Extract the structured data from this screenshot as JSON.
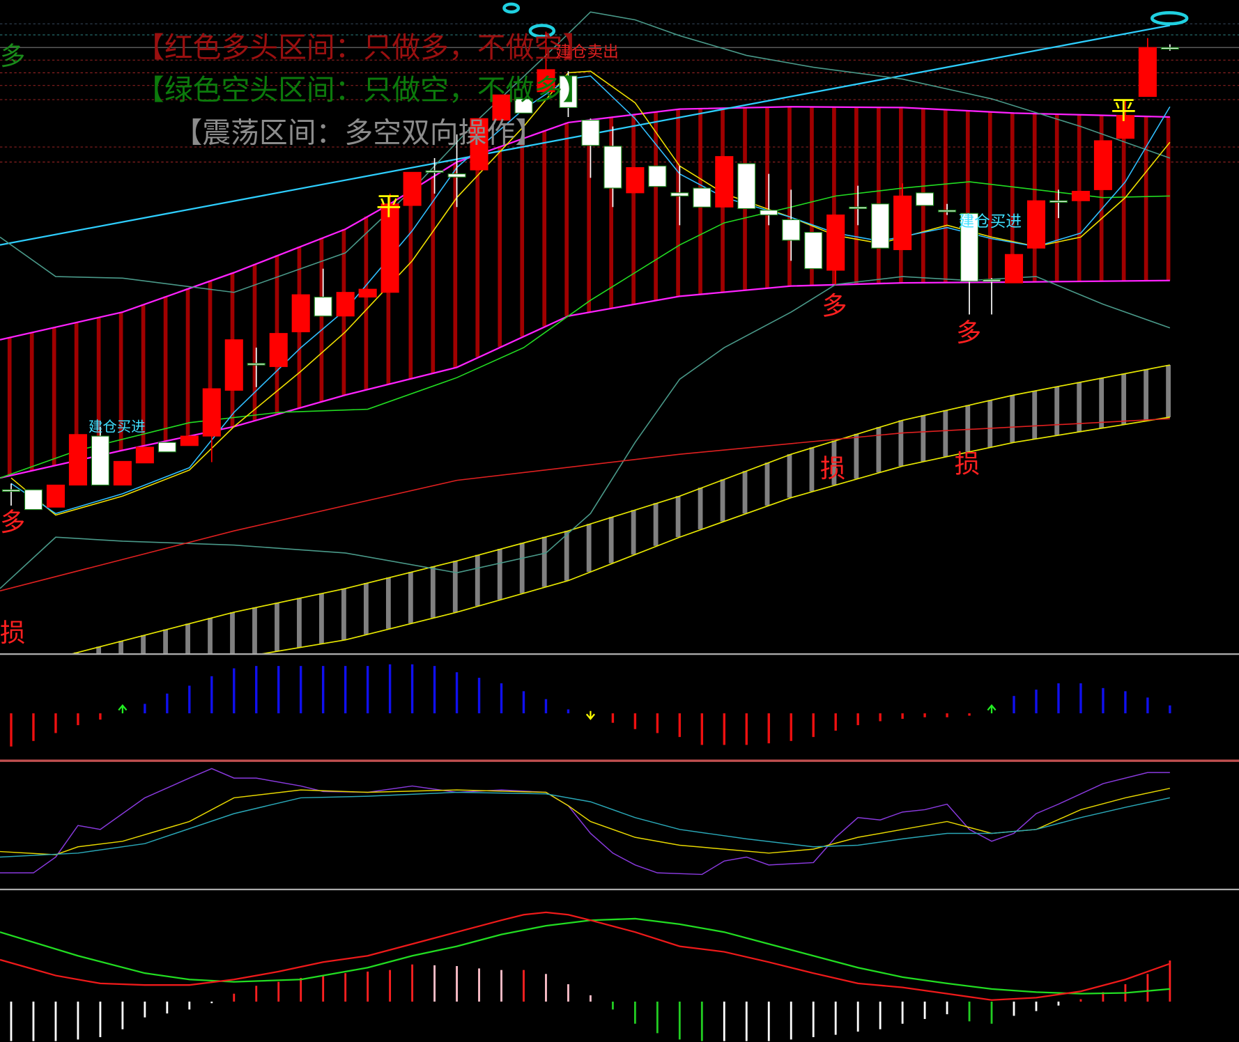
{
  "chart_data": [
    {
      "type": "candlestick",
      "xlim": [
        -0.5,
        55.1
      ],
      "ylim": [
        0,
        828
      ],
      "up_color": "#ff0000",
      "down_color": "#ffffff",
      "open": [
        208,
        208,
        186,
        214,
        276,
        214,
        242,
        268,
        264,
        276,
        334,
        368,
        364,
        408,
        452,
        428,
        452,
        458,
        568,
        612,
        608,
        613,
        676,
        703,
        712,
        732,
        676,
        643,
        584,
        618,
        584,
        590,
        566,
        621,
        562,
        550,
        534,
        486,
        566,
        570,
        512,
        584,
        562,
        558,
        474,
        470,
        514,
        574,
        574,
        588,
        653,
        706,
        768
      ],
      "high": [
        216,
        208,
        214,
        278,
        288,
        244,
        262,
        268,
        276,
        336,
        398,
        388,
        406,
        455,
        488,
        458,
        462,
        583,
        610,
        628,
        658,
        678,
        708,
        703,
        788,
        738,
        678,
        668,
        616,
        618,
        618,
        590,
        630,
        621,
        608,
        588,
        534,
        556,
        593,
        570,
        596,
        584,
        570,
        558,
        476,
        506,
        574,
        588,
        586,
        650,
        702,
        780,
        772
      ],
      "low": [
        188,
        183,
        186,
        214,
        214,
        214,
        242,
        256,
        264,
        243,
        334,
        338,
        364,
        408,
        428,
        428,
        452,
        458,
        568,
        583,
        566,
        613,
        676,
        685,
        712,
        680,
        603,
        566,
        584,
        592,
        543,
        566,
        566,
        564,
        543,
        498,
        488,
        468,
        543,
        514,
        512,
        568,
        556,
        430,
        430,
        470,
        514,
        552,
        574,
        588,
        653,
        706,
        764
      ],
      "close": [
        208,
        183,
        214,
        278,
        214,
        244,
        262,
        256,
        276,
        336,
        398,
        368,
        406,
        455,
        428,
        458,
        462,
        570,
        610,
        612,
        604,
        678,
        708,
        685,
        740,
        692,
        644,
        590,
        616,
        592,
        580,
        566,
        630,
        564,
        556,
        524,
        488,
        556,
        566,
        514,
        580,
        568,
        562,
        472,
        474,
        506,
        574,
        574,
        586,
        650,
        682,
        768,
        768
      ],
      "band_color": "#a00000",
      "band_upper": {
        "color": "#ff22ff",
        "x": [
          -0.5,
          5,
          10,
          15,
          17,
          20,
          25,
          30,
          35,
          40,
          45,
          52
        ],
        "values": [
          398,
          433,
          483,
          538,
          570,
          623,
          673,
          690,
          693,
          692,
          685,
          680
        ]
      },
      "band_lower": {
        "color": "#ff22ff",
        "x": [
          -0.5,
          5,
          10,
          15,
          20,
          25,
          30,
          35,
          40,
          45,
          52
        ],
        "values": [
          223,
          258,
          288,
          328,
          363,
          428,
          453,
          466,
          470,
          471,
          473
        ]
      },
      "channel_color": "#808080",
      "channel_upper": {
        "color": "#e8e800",
        "x": [
          2.7,
          10,
          15,
          20,
          25,
          30,
          35,
          40,
          45,
          52
        ],
        "values": [
          0,
          53,
          83,
          118,
          156,
          200,
          253,
          296,
          328,
          366
        ]
      },
      "channel_lower": {
        "color": "#e8e800",
        "x": [
          11.2,
          15,
          20,
          25,
          30,
          35,
          40,
          45,
          52
        ],
        "values": [
          0,
          18,
          53,
          93,
          148,
          198,
          238,
          268,
          300
        ]
      },
      "lines": [
        {
          "color": "#2ecfff",
          "x": [
            -0.5,
            52
          ],
          "values": [
            518,
            796
          ]
        },
        {
          "color": "#4a9a8a",
          "x": [
            -0.5,
            2,
            5,
            10,
            15,
            18,
            21,
            24,
            26,
            28,
            30,
            33,
            36,
            40,
            44,
            48,
            52
          ],
          "values": [
            528,
            478,
            476,
            458,
            508,
            588,
            678,
            758,
            813,
            803,
            783,
            758,
            743,
            728,
            703,
            668,
            628
          ]
        },
        {
          "color": "#4a9a8a",
          "x": [
            -0.5,
            2,
            5,
            10,
            15,
            20,
            24,
            26,
            28,
            30,
            32,
            35,
            37,
            40,
            43,
            46,
            49,
            52
          ],
          "values": [
            83,
            148,
            143,
            138,
            128,
            103,
            128,
            178,
            268,
            348,
            388,
            433,
            468,
            478,
            473,
            478,
            443,
            413
          ]
        },
        {
          "color": "#e02020",
          "x": [
            -0.5,
            10,
            20,
            30,
            40,
            52
          ],
          "values": [
            80,
            156,
            220,
            253,
            280,
            298
          ]
        },
        {
          "color": "#22dd22",
          "x": [
            -0.5,
            3,
            8,
            12,
            16,
            20,
            23,
            26,
            28,
            30,
            32,
            35,
            37,
            40,
            43,
            46,
            49,
            52
          ],
          "values": [
            223,
            258,
            293,
            306,
            310,
            350,
            388,
            448,
            483,
            518,
            546,
            566,
            580,
            590,
            598,
            588,
            578,
            580
          ]
        },
        {
          "color": "#f0e000",
          "x": [
            0,
            2,
            5,
            8,
            10,
            13,
            15,
            18,
            20,
            23,
            25,
            26,
            28,
            30,
            32,
            35,
            37,
            39,
            42,
            44,
            46,
            48,
            50,
            52
          ],
          "values": [
            223,
            176,
            200,
            233,
            288,
            358,
            408,
            498,
            578,
            668,
            736,
            738,
            698,
            618,
            583,
            553,
            530,
            520,
            543,
            528,
            516,
            528,
            578,
            648
          ]
        },
        {
          "color": "#30bfff",
          "x": [
            0,
            2,
            5,
            8,
            10,
            13,
            15,
            18,
            20,
            23,
            25,
            26,
            28,
            30,
            32,
            35,
            37,
            39,
            42,
            44,
            46,
            48,
            50,
            52
          ],
          "values": [
            216,
            178,
            203,
            236,
            306,
            388,
            436,
            536,
            616,
            690,
            728,
            732,
            678,
            608,
            578,
            553,
            533,
            523,
            540,
            526,
            516,
            533,
            598,
            693
          ]
        }
      ],
      "annotations": [
        {
          "text": "【红色多头区间：只做多，不做空】",
          "color": "#9a1010"
        },
        {
          "text": "【绿色空头区间：只做空，不做多】",
          "color": "#0c7a0c"
        },
        {
          "text": "【震荡区间：多空双向操作】",
          "color": "#8c8c8c"
        },
        {
          "text": "建仓买进",
          "color": "#40e0ff"
        },
        {
          "text": "建仓卖出",
          "color": "#e02020"
        },
        {
          "text": "建仓买进",
          "color": "#40e0ff"
        },
        {
          "text": "多",
          "color": "#1a8a1a"
        },
        {
          "text": "多",
          "color": "#ff2020"
        },
        {
          "text": "多",
          "color": "#ff2020"
        },
        {
          "text": "多",
          "color": "#ff2020"
        },
        {
          "text": "平",
          "color": "#ffff00"
        },
        {
          "text": "平",
          "color": "#ffff00"
        },
        {
          "text": "损",
          "color": "#ff2020"
        },
        {
          "text": "损",
          "color": "#ff2020"
        },
        {
          "text": "损",
          "color": "#ff2020"
        }
      ]
    },
    {
      "type": "bar",
      "xlim": [
        -0.5,
        55.1
      ],
      "ylim": [
        -59,
        73
      ],
      "pos_color": "#1010ee",
      "neg_color": "#ee1010",
      "up_arrow_color": "#22ee22",
      "down_arrow_color": "#ffff00",
      "values": [
        -42,
        -35,
        -25,
        -15,
        -8,
        0,
        12,
        25,
        35,
        47,
        57,
        60,
        60,
        60,
        60,
        60,
        60,
        62,
        62,
        60,
        52,
        45,
        38,
        28,
        18,
        5,
        0,
        -12,
        -20,
        -25,
        -30,
        -40,
        -40,
        -40,
        -38,
        -35,
        -30,
        -22,
        -15,
        -10,
        -7,
        -5,
        -5,
        -3,
        0,
        22,
        30,
        38,
        38,
        32,
        28,
        20,
        10
      ]
    },
    {
      "type": "line",
      "xlim": [
        -0.5,
        55.1
      ],
      "ylim": [
        0,
        160
      ],
      "series": [
        {
          "color": "#8a3adf",
          "x": [
            -0.5,
            1,
            2,
            3,
            4,
            6,
            8,
            9,
            10,
            11,
            13,
            14,
            16,
            18,
            20,
            22,
            24,
            25,
            26,
            27,
            28,
            29,
            31,
            32,
            33,
            34,
            36,
            37,
            38,
            39,
            40,
            41,
            42,
            43,
            44,
            45,
            46,
            47,
            49,
            51,
            52
          ],
          "values": [
            20,
            20,
            40,
            80,
            75,
            115,
            140,
            152,
            140,
            140,
            130,
            123,
            122,
            130,
            122,
            125,
            122,
            105,
            70,
            45,
            30,
            20,
            18,
            35,
            40,
            30,
            33,
            65,
            90,
            87,
            97,
            100,
            107,
            75,
            60,
            70,
            95,
            107,
            133,
            147,
            147
          ]
        },
        {
          "color": "#e8d800",
          "x": [
            -0.5,
            2,
            3,
            5,
            8,
            10,
            13,
            16,
            20,
            24,
            25,
            26,
            28,
            30,
            32,
            34,
            36,
            38,
            40,
            42,
            44,
            46,
            48,
            50,
            52
          ],
          "values": [
            47,
            43,
            53,
            60,
            85,
            115,
            125,
            122,
            125,
            122,
            105,
            85,
            65,
            55,
            50,
            45,
            50,
            65,
            75,
            85,
            70,
            75,
            100,
            115,
            127
          ]
        },
        {
          "color": "#2aa8b8",
          "x": [
            -0.5,
            3,
            6,
            10,
            13,
            16,
            20,
            24,
            26,
            28,
            30,
            33,
            36,
            38,
            40,
            42,
            44,
            46,
            48,
            50,
            52
          ],
          "values": [
            40,
            45,
            57,
            95,
            115,
            117,
            122,
            120,
            110,
            90,
            75,
            63,
            53,
            55,
            63,
            70,
            70,
            75,
            90,
            103,
            115
          ]
        }
      ]
    },
    {
      "type": "macd",
      "xlim": [
        -0.5,
        55.1
      ],
      "ylim": [
        -51,
        140
      ],
      "bar_colors": {
        "rise_pos": "#ff2020",
        "fall_pos": "#ffc0cb",
        "fall_neg": "#22cc22",
        "rise_neg": "#ffffff"
      },
      "values": [
        -50,
        -50,
        -50,
        -48,
        -45,
        -35,
        -20,
        -15,
        -10,
        -2,
        10,
        20,
        25,
        30,
        33,
        36,
        38,
        40,
        47,
        46,
        45,
        42,
        40,
        40,
        35,
        22,
        8,
        -10,
        -28,
        -40,
        -48,
        -50,
        -50,
        -50,
        -50,
        -48,
        -45,
        -42,
        -38,
        -35,
        -28,
        -22,
        -16,
        -25,
        -28,
        -18,
        -12,
        -5,
        3,
        12,
        22,
        35,
        52
      ],
      "series": [
        {
          "color": "#22dd22",
          "x": [
            -0.5,
            3,
            6,
            8,
            10,
            13,
            16,
            18,
            20,
            22,
            24,
            26,
            28,
            30,
            32,
            34,
            36,
            38,
            40,
            42,
            44,
            46,
            48,
            50,
            52
          ],
          "values": [
            88,
            58,
            36,
            28,
            25,
            28,
            43,
            58,
            70,
            85,
            96,
            103,
            105,
            98,
            88,
            73,
            58,
            43,
            31,
            23,
            16,
            12,
            10,
            11,
            16
          ]
        },
        {
          "color": "#ee1a1a",
          "x": [
            -0.5,
            2,
            4,
            6,
            8,
            10,
            12,
            14,
            16,
            18,
            20,
            22,
            23,
            24,
            25,
            26,
            28,
            30,
            32,
            34,
            36,
            38,
            40,
            42,
            44,
            46,
            48,
            50,
            52
          ],
          "values": [
            53,
            33,
            23,
            21,
            21,
            28,
            38,
            50,
            58,
            73,
            88,
            103,
            110,
            113,
            110,
            103,
            88,
            70,
            63,
            50,
            36,
            23,
            18,
            10,
            2,
            5,
            13,
            28,
            48
          ]
        }
      ]
    }
  ]
}
